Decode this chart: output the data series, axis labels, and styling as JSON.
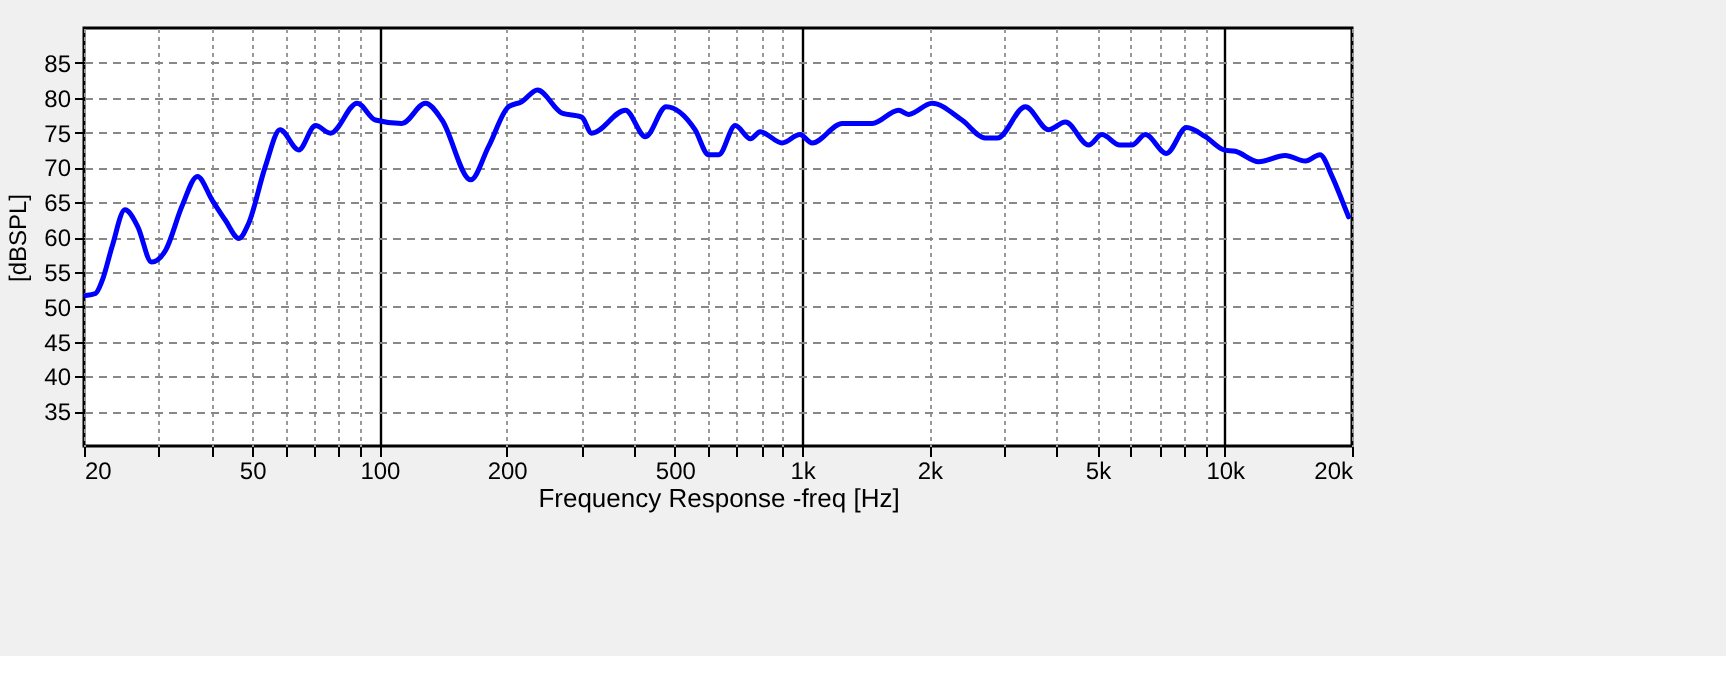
{
  "chart_data": {
    "type": "line",
    "xlabel": "Frequency Response -freq [Hz]",
    "ylabel": "[dBSPL]",
    "log": "x",
    "grid": true,
    "legend": false,
    "marker": "none",
    "line_style": "solid",
    "xlim": [
      20,
      20000
    ],
    "ylim": [
      30,
      90
    ],
    "xticks": [
      20,
      {
        "value": 30,
        "label": null
      },
      {
        "value": 40,
        "label": null
      },
      50,
      {
        "value": 60,
        "label": null
      },
      {
        "value": 70,
        "label": null
      },
      {
        "value": 80,
        "label": null
      },
      {
        "value": 90,
        "label": null
      },
      100,
      200,
      {
        "value": 300,
        "label": null
      },
      {
        "value": 400,
        "label": null
      },
      500,
      {
        "value": 600,
        "label": null
      },
      {
        "value": 700,
        "label": null
      },
      {
        "value": 800,
        "label": null
      },
      {
        "value": 900,
        "label": null
      },
      {
        "value": 1000,
        "label": "1k"
      },
      {
        "value": 2000,
        "label": "2k"
      },
      {
        "value": 3000,
        "label": null
      },
      {
        "value": 4000,
        "label": null
      },
      {
        "value": 5000,
        "label": "5k"
      },
      {
        "value": 6000,
        "label": null
      },
      {
        "value": 7000,
        "label": null
      },
      {
        "value": 8000,
        "label": null
      },
      {
        "value": 9000,
        "label": null
      },
      {
        "value": 10000,
        "label": "10k"
      },
      {
        "value": 20000,
        "label": "20k"
      }
    ],
    "yticks": [
      35,
      40,
      45,
      50,
      55,
      60,
      65,
      70,
      75,
      80,
      85
    ],
    "x": [
      20.2,
      21.3,
      22.1,
      23.3,
      25.0,
      26.8,
      28.9,
      31.2,
      34.1,
      37.1,
      40.2,
      43.2,
      46.5,
      49.0,
      53.7,
      58.2,
      64.4,
      70.6,
      76.6,
      88.6,
      97.8,
      113,
      128.5,
      140.6,
      164.4,
      181.3,
      202,
      217,
      236.5,
      270,
      301,
      318,
      382,
      426,
      477,
      558,
      601,
      635,
      695,
      755,
      796,
      897,
      988,
      1056,
      1245,
      1466,
      1692,
      1787,
      2029,
      2389,
      2714,
      2897,
      3375,
      3829,
      4198,
      4764,
      5119,
      5646,
      6030,
      6486,
      7278,
      8120,
      8995,
      9950,
      10590,
      12030,
      13900,
      15520,
      16790,
      17940,
      18930,
      19630
    ],
    "series": [
      {
        "color": "#0000ff",
        "values": [
          51.6,
          51.9,
          53.8,
          58.6,
          63.9,
          61.5,
          56.4,
          58.1,
          64.4,
          68.7,
          65.3,
          62.4,
          59.8,
          61.9,
          70.1,
          75.4,
          72.5,
          76.0,
          74.9,
          79.2,
          76.8,
          76.3,
          79.2,
          76.8,
          68.2,
          73.0,
          78.7,
          79.4,
          81.1,
          77.8,
          77.2,
          74.9,
          78.2,
          74.4,
          78.7,
          75.4,
          71.8,
          71.8,
          76.0,
          74.1,
          75.1,
          73.5,
          74.7,
          73.5,
          76.3,
          76.3,
          78.2,
          77.6,
          79.2,
          76.8,
          74.2,
          74.2,
          78.7,
          75.4,
          76.5,
          73.2,
          74.7,
          73.2,
          73.2,
          74.7,
          72.0,
          75.7,
          74.4,
          72.5,
          72.3,
          70.8,
          71.7,
          70.9,
          71.8,
          68.7,
          65.3,
          62.9
        ]
      }
    ]
  }
}
